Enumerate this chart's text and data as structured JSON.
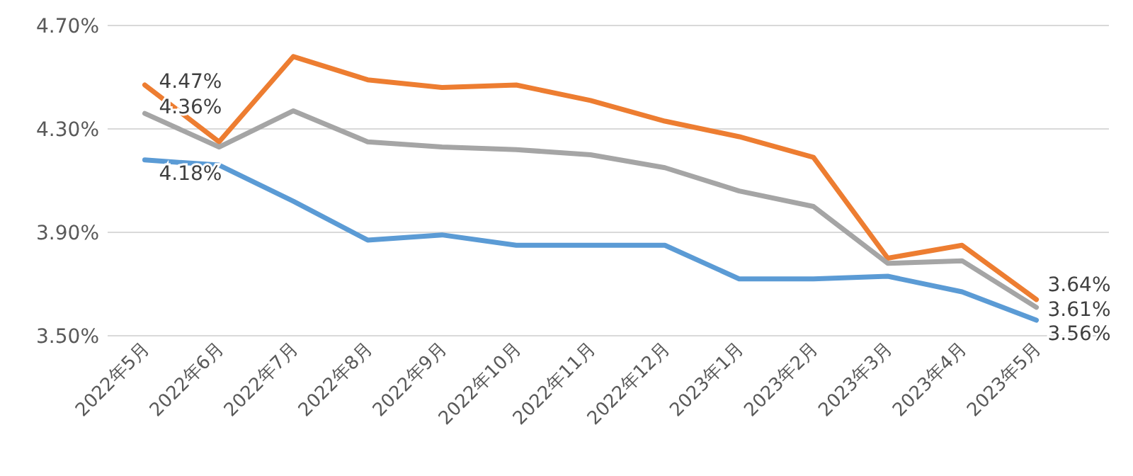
{
  "chart_data": {
    "type": "line",
    "categories": [
      "2022年5月",
      "2022年6月",
      "2022年7月",
      "2022年8月",
      "2022年9月",
      "2022年10月",
      "2022年11月",
      "2022年12月",
      "2023年1月",
      "2023年2月",
      "2023年3月",
      "2023年4月",
      "2023年5月"
    ],
    "series": [
      {
        "color": "#ed7d31",
        "values": [
          4.47,
          4.25,
          4.58,
          4.49,
          4.46,
          4.47,
          4.41,
          4.33,
          4.27,
          4.19,
          3.8,
          3.85,
          3.64
        ],
        "value_labels": [
          "4.47%",
          null,
          null,
          null,
          null,
          null,
          null,
          null,
          null,
          null,
          null,
          null,
          "3.64%"
        ]
      },
      {
        "color": "#a5a5a5",
        "values": [
          4.36,
          4.23,
          4.37,
          4.25,
          4.23,
          4.22,
          4.2,
          4.15,
          4.06,
          4.0,
          3.78,
          3.79,
          3.61
        ],
        "value_labels": [
          "4.36%",
          null,
          null,
          null,
          null,
          null,
          null,
          null,
          null,
          null,
          null,
          null,
          "3.61%"
        ]
      },
      {
        "color": "#5b9bd5",
        "values": [
          4.18,
          4.16,
          4.02,
          3.87,
          3.89,
          3.85,
          3.85,
          3.85,
          3.72,
          3.72,
          3.73,
          3.67,
          3.56
        ],
        "value_labels": [
          "4.18%",
          null,
          null,
          null,
          null,
          null,
          null,
          null,
          null,
          null,
          null,
          null,
          "3.56%"
        ]
      }
    ],
    "ylim": [
      3.5,
      4.7
    ],
    "yticks": [
      {
        "value": 3.5,
        "label": "3.50%"
      },
      {
        "value": 3.9,
        "label": "3.90%"
      },
      {
        "value": 4.3,
        "label": "4.30%"
      },
      {
        "value": 4.7,
        "label": "4.70%"
      }
    ],
    "grid": true,
    "marker": "none",
    "line_style": "solid"
  }
}
